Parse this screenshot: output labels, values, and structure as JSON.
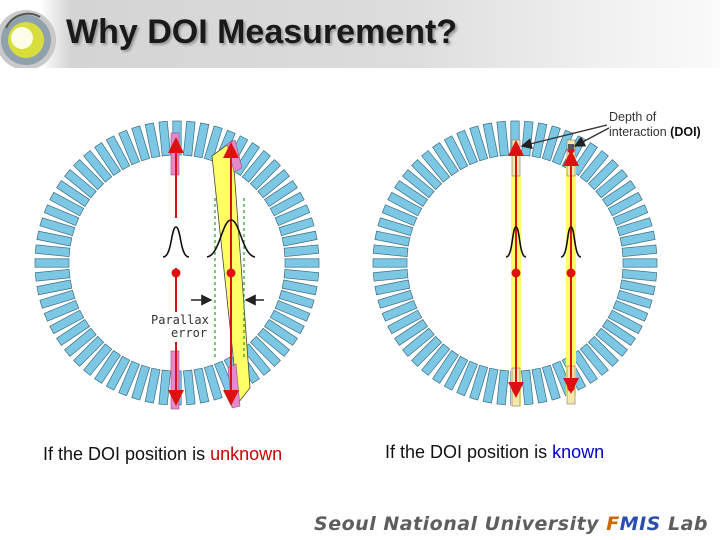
{
  "title": "Why DOI Measurement?",
  "annotations": {
    "doi_line1": "Depth of",
    "doi_line2_prefix": "interaction ",
    "doi_line2_bold": "(DOI)",
    "parallax_line1": "Parallax",
    "parallax_line2": "error"
  },
  "captions": {
    "left_prefix": "If the DOI position is ",
    "left_highlight": "unknown",
    "right_prefix": "If the DOI position is ",
    "right_highlight": "known"
  },
  "footer": {
    "prefix": "Seoul National University ",
    "f": "F",
    "mis": "MIS",
    "suffix": " Lab"
  },
  "colors": {
    "crystal_fill": "#7cc8e4",
    "crystal_stroke": "#3c6c80",
    "lor": "#dd1111",
    "highlight_band": "#ffff66",
    "parallax_crystal": "#e58ac8",
    "red_text": "#cc0000",
    "blue_text": "#0000cc"
  }
}
